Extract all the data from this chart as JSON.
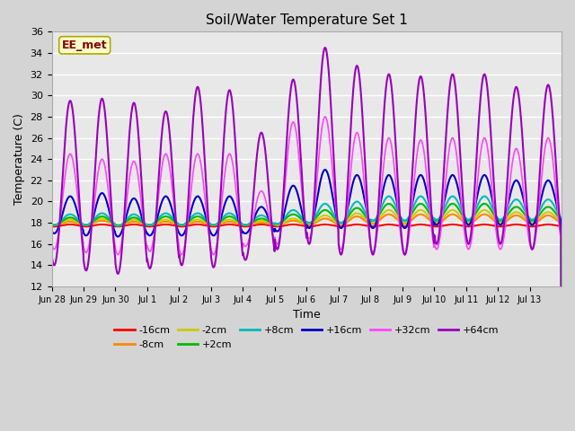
{
  "title": "Soil/Water Temperature Set 1",
  "xlabel": "Time",
  "ylabel": "Temperature (C)",
  "ylim": [
    12,
    36
  ],
  "yticks": [
    12,
    14,
    16,
    18,
    20,
    22,
    24,
    26,
    28,
    30,
    32,
    34,
    36
  ],
  "plot_bg": "#e8e8e8",
  "fig_bg": "#d4d4d4",
  "annotation_text": "EE_met",
  "annotation_bg": "#ffffcc",
  "annotation_border": "#aaaa00",
  "annotation_text_color": "#880000",
  "series_colors": {
    "-16cm": "#ff0000",
    "-8cm": "#ff8800",
    "-2cm": "#cccc00",
    "+2cm": "#00bb00",
    "+8cm": "#00bbbb",
    "+16cm": "#0000cc",
    "+32cm": "#ff44ff",
    "+64cm": "#9900bb"
  },
  "series_order": [
    "-16cm",
    "-8cm",
    "-2cm",
    "+2cm",
    "+8cm",
    "+16cm",
    "+32cm",
    "+64cm"
  ],
  "plot_order": [
    "-16cm",
    "-8cm",
    "-2cm",
    "+2cm",
    "+8cm",
    "+16cm",
    "+32cm",
    "+64cm"
  ],
  "legend_row1": [
    "-16cm",
    "-8cm",
    "-2cm",
    "+2cm",
    "+8cm",
    "+16cm"
  ],
  "legend_row2": [
    "+32cm",
    "+64cm"
  ],
  "xtick_labels": [
    "Jun 28",
    "Jun 29",
    "Jun 30",
    "Jul 1",
    "Jul 2",
    "Jul 3",
    "Jul 4",
    "Jul 5",
    "Jul 6",
    "Jul 7",
    "Jul 8",
    "Jul 9",
    "Jul 10",
    "Jul 11",
    "Jul 12",
    "Jul 13"
  ],
  "n_days": 16,
  "spd": 144
}
